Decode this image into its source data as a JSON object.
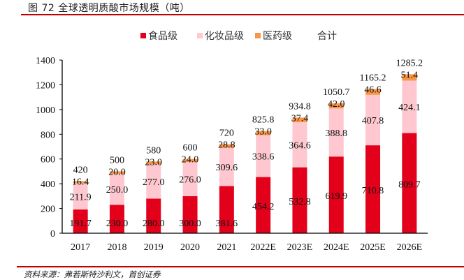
{
  "figure": {
    "title": "图 72  全球透明质酸市场规模（吨）",
    "source": "资料来源：弗若斯特沙利文，首创证券"
  },
  "colors": {
    "food": "#e2001a",
    "cosmetic": "#ffc8d0",
    "medical": "#f79646",
    "rule": "#c00000",
    "axis": "#000000"
  },
  "chart_data": {
    "type": "bar",
    "stacked": true,
    "title": "全球透明质酸市场规模（吨）",
    "xlabel": "",
    "ylabel": "",
    "ylim": [
      0,
      1400
    ],
    "yticks": [
      0,
      200,
      400,
      600,
      800,
      1000,
      1200,
      1400
    ],
    "grid": false,
    "legend_position": "top",
    "categories": [
      "2017",
      "2018",
      "2019",
      "2020",
      "2021",
      "2022E",
      "2023E",
      "2024E",
      "2025E",
      "2026E"
    ],
    "series": [
      {
        "name": "食品级",
        "color": "#e2001a",
        "values": [
          191.7,
          230.0,
          280.0,
          300.0,
          381.6,
          454.2,
          532.8,
          619.9,
          710.8,
          809.7
        ],
        "labels": [
          "191.7",
          "230.0",
          "280.0",
          "300.0",
          "381.6",
          "454.2",
          "532.8",
          "619.9",
          "710.8",
          "809.7"
        ]
      },
      {
        "name": "化妆品级",
        "color": "#ffc8d0",
        "values": [
          211.9,
          250.0,
          277.0,
          276.0,
          309.6,
          338.6,
          364.6,
          388.8,
          407.8,
          424.1
        ],
        "labels": [
          "211.9",
          "250.0",
          "277.0",
          "276.0",
          "309.6",
          "338.6",
          "364.6",
          "388.8",
          "407.8",
          "424.1"
        ]
      },
      {
        "name": "医药级",
        "color": "#f79646",
        "values": [
          16.4,
          20.0,
          23.0,
          24.0,
          28.8,
          33.0,
          37.4,
          42.0,
          46.6,
          51.4
        ],
        "labels": [
          "16.4",
          "20.0",
          "23.0",
          "24.0",
          "28.8",
          "33.0",
          "37.4",
          "42.0",
          "46.6",
          "51.4"
        ]
      }
    ],
    "totals": {
      "name": "合计",
      "values": [
        420,
        500,
        580,
        600,
        720,
        825.8,
        934.8,
        1050.7,
        1165.2,
        1285.2
      ],
      "labels": [
        "420",
        "500",
        "580",
        "600",
        "720",
        "825.8",
        "934.8",
        "1050.7",
        "1165.2",
        "1285.2"
      ]
    }
  }
}
